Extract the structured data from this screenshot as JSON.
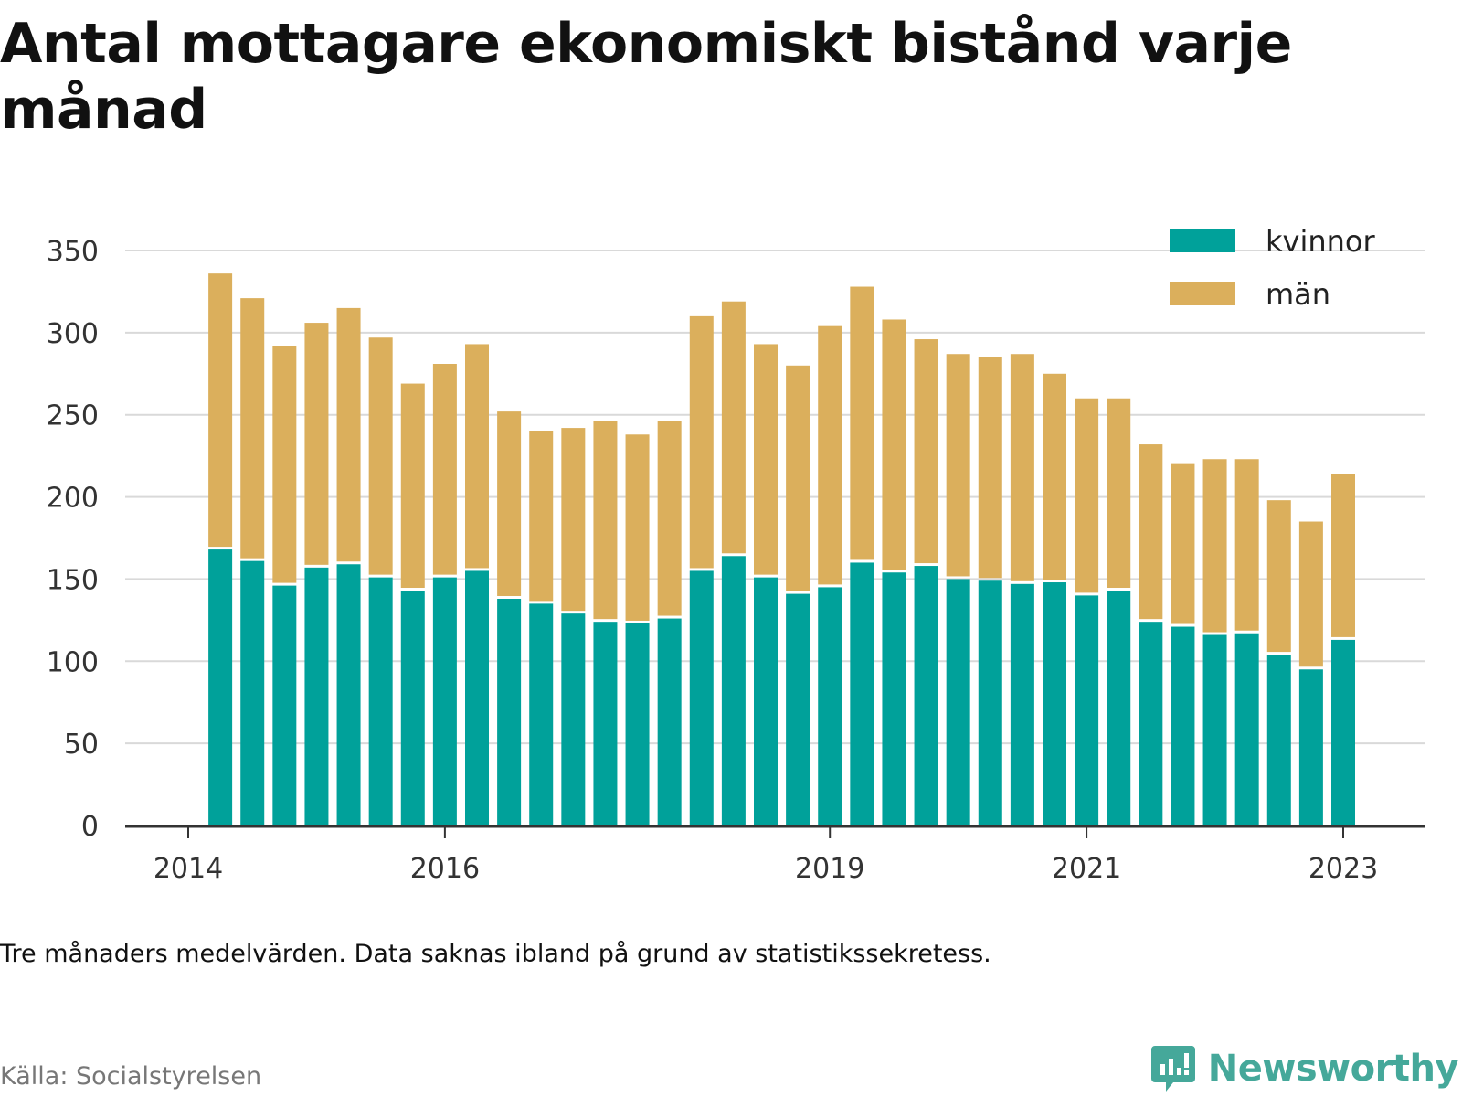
{
  "title": "Antal mottagare ekonomiskt bistånd varje månad",
  "note": "Tre månaders medelvärden. Data saknas ibland på grund av statistikssekretess.",
  "source": "Källa: Socialstyrelsen",
  "brand": {
    "name": "Newsworthy",
    "color": "#45a89a"
  },
  "chart_data": {
    "type": "bar",
    "stacked": true,
    "grid": true,
    "legend_position": "top-right",
    "ylim": [
      0,
      350
    ],
    "yticks": [
      0,
      50,
      100,
      150,
      200,
      250,
      300,
      350
    ],
    "xticks": [
      {
        "label": "2014",
        "x": "2014-01"
      },
      {
        "label": "2016",
        "x": "2016-01"
      },
      {
        "label": "2019",
        "x": "2019-01"
      },
      {
        "label": "2021",
        "x": "2021-01"
      },
      {
        "label": "2023",
        "x": "2023-01"
      }
    ],
    "categories": [
      "2014-04",
      "2014-07",
      "2014-10",
      "2015-01",
      "2015-04",
      "2015-07",
      "2015-10",
      "2016-01",
      "2016-04",
      "2016-07",
      "2016-10",
      "2017-01",
      "2017-04",
      "2017-07",
      "2017-10",
      "2018-01",
      "2018-04",
      "2018-07",
      "2018-10",
      "2019-01",
      "2019-04",
      "2019-07",
      "2019-10",
      "2020-01",
      "2020-04",
      "2020-07",
      "2020-10",
      "2021-01",
      "2021-04",
      "2021-07",
      "2021-10",
      "2022-01",
      "2022-04",
      "2022-07",
      "2022-10",
      "2023-01"
    ],
    "series": [
      {
        "name": "kvinnor",
        "color": "#00a19a",
        "values": [
          168,
          161,
          146,
          157,
          159,
          151,
          143,
          151,
          155,
          138,
          135,
          129,
          124,
          123,
          126,
          155,
          164,
          151,
          141,
          145,
          160,
          154,
          158,
          150,
          149,
          147,
          148,
          140,
          143,
          124,
          121,
          116,
          117,
          104,
          95,
          113
        ]
      },
      {
        "name": "män",
        "color": "#dbaf5c",
        "values": [
          168,
          160,
          146,
          149,
          156,
          146,
          126,
          130,
          138,
          114,
          105,
          113,
          122,
          115,
          120,
          155,
          155,
          142,
          139,
          159,
          168,
          154,
          138,
          137,
          136,
          140,
          127,
          120,
          117,
          108,
          99,
          107,
          106,
          94,
          90,
          101
        ]
      }
    ]
  }
}
